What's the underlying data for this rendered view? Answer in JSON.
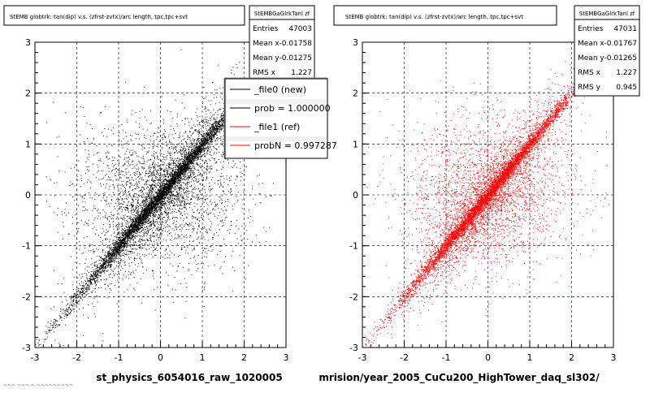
{
  "panels": [
    {
      "title": "StEMB globtrk: tan(dip) v.s. (zfrst-zvtx)/arc length, tpc,tpc+svt",
      "stats": {
        "name": "StEMBGaGlrkTanl zf",
        "rows": [
          {
            "label": "Entries",
            "value": "47003"
          },
          {
            "label": "Mean x",
            "value": "-0.01758"
          },
          {
            "label": "Mean y",
            "value": "-0.01275"
          },
          {
            "label": "RMS x",
            "value": "1.227"
          }
        ]
      },
      "xlabel": "st_physics_6054016_raw_1020005",
      "legend": [
        {
          "text": "_file0 (new)",
          "color": "#000000"
        },
        {
          "text": "prob = 1.000000",
          "color": "#000000"
        },
        {
          "text": "_file1 (ref)",
          "color": "#ff0000"
        },
        {
          "text": "probN = 0.997287",
          "color": "#ff0000"
        }
      ]
    },
    {
      "title": "StEMB globtrk: tan(dip) v.s. (zfrst-zvtx)/arc length, tpc,tpc+svt",
      "stats": {
        "name": "StEMBGaGlrkTanl zf",
        "rows": [
          {
            "label": "Entries",
            "value": "47031"
          },
          {
            "label": "Mean x",
            "value": "-0.01767"
          },
          {
            "label": "Mean y",
            "value": "-0.01265"
          },
          {
            "label": "RMS x",
            "value": "1.227"
          },
          {
            "label": "RMS y",
            "value": "0.945"
          }
        ]
      },
      "xlabel": "mrision/year_2005_CuCu200_HighTower_daq_sl302/"
    }
  ],
  "footer_text": "~~~ ~~~ ~ ~~~~~~~~~",
  "chart_data": [
    {
      "type": "scatter",
      "title": "StEMB globtrk: tan(dip) v.s. (zfrst-zvtx)/arc length, tpc,tpc+svt",
      "xlabel": "st_physics_6054016_raw_1020005",
      "ylabel": "",
      "xlim": [
        -3,
        3
      ],
      "ylim": [
        -3,
        3
      ],
      "x_ticks": [
        "-3",
        "-2",
        "-1",
        "0",
        "1",
        "2",
        "3"
      ],
      "y_ticks": [
        "-3",
        "-2",
        "-1",
        "0",
        "1",
        "2",
        "3"
      ],
      "grid": true,
      "marker_color": "#000000",
      "series": [
        {
          "name": "_file0 (new)",
          "entries": 47003,
          "mean_x": -0.01758,
          "mean_y": -0.01275,
          "rms_x": 1.227
        }
      ],
      "density_structure": "dense diagonal band y≈x with diffuse cloud"
    },
    {
      "type": "scatter",
      "title": "StEMB globtrk: tan(dip) v.s. (zfrst-zvtx)/arc length, tpc,tpc+svt",
      "xlabel": "mrision/year_2005_CuCu200_HighTower_daq_sl302/",
      "ylabel": "",
      "xlim": [
        -3,
        3
      ],
      "ylim": [
        -3,
        3
      ],
      "x_ticks": [
        "-3",
        "-2",
        "-1",
        "0",
        "1",
        "2",
        "3"
      ],
      "y_ticks": [
        "-3",
        "-2",
        "-1",
        "0",
        "1",
        "2",
        "3"
      ],
      "grid": true,
      "marker_color": "#ff0000",
      "series": [
        {
          "name": "_file1 (ref)",
          "entries": 47031,
          "mean_x": -0.01767,
          "mean_y": -0.01265,
          "rms_x": 1.227,
          "rms_y": 0.945
        }
      ],
      "density_structure": "dense diagonal band y≈x with diffuse cloud"
    }
  ]
}
